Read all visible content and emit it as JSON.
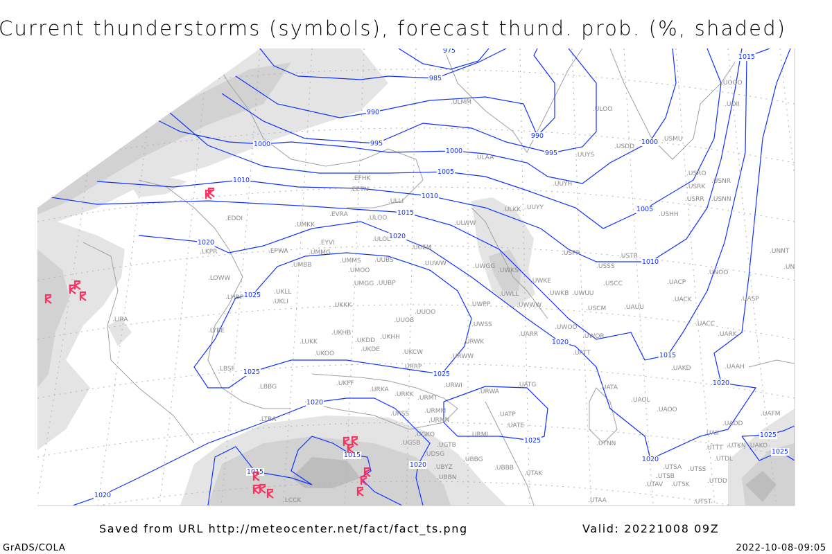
{
  "title": "Current thunderstorms (symbols), forecast thund. prob. (%, shaded)",
  "footer": {
    "saved_from": "Saved from URL http://meteocenter.net/fact/fact_ts.png",
    "valid": "Valid: 20221008 09Z",
    "software": "GrADS/COLA",
    "timestamp": "2022-10-08-09:05"
  },
  "colors": {
    "isobar": "#1030ff",
    "coastline": "#a0a0a0",
    "station_label": "#8a8a8a",
    "thunderstorm_symbol": "#ff3060",
    "shade_light": "#e4e4e4",
    "shade_mid": "#d2d2d2",
    "shade_dark": "#bdbdbd"
  },
  "legend": {
    "symbol": "thunderstorm-symbol-icon"
  },
  "isobars": [
    {
      "value": "975",
      "labels": [
        "975"
      ]
    },
    {
      "value": "985",
      "labels": [
        "985"
      ]
    },
    {
      "value": "990",
      "labels": [
        "990",
        "990"
      ]
    },
    {
      "value": "995",
      "labels": [
        "995",
        "995"
      ]
    },
    {
      "value": "1000",
      "labels": [
        "1000",
        "1000",
        "1000"
      ]
    },
    {
      "value": "1005",
      "labels": [
        "1005",
        "1005"
      ]
    },
    {
      "value": "1010",
      "labels": [
        "1010",
        "1010",
        "1010"
      ]
    },
    {
      "value": "1015",
      "labels": [
        "1015",
        "1015",
        "1015"
      ]
    },
    {
      "value": "1020",
      "labels": [
        "1020",
        "1020",
        "1020",
        "1020",
        "1020"
      ]
    },
    {
      "value": "1025",
      "labels": [
        "1025",
        "1025",
        "1025"
      ]
    },
    {
      "value": "1025",
      "labels": [
        "1025"
      ]
    },
    {
      "value": "1020",
      "labels": [
        "1020",
        "1020",
        "1020"
      ]
    },
    {
      "value": "1015",
      "labels": [
        "1015",
        "1015"
      ]
    },
    {
      "value": "1025",
      "labels": [
        "1025",
        "1025"
      ]
    }
  ],
  "stations": [
    "ULMM",
    "ULOO",
    "USDD",
    "USMU",
    "UUYS",
    "ULAA",
    "UUYH",
    "ULKK",
    "UUYY",
    "USHH",
    "USRO",
    "USRK",
    "USNR",
    "USRR",
    "USNN",
    "UOOO",
    "UOII",
    "EFHK",
    "EETN",
    "ULLI",
    "EVRA",
    "ULOO",
    "ULWW",
    "EDDI",
    "UMKK",
    "LKPR",
    "EPWA",
    "EYVI",
    "UMMG",
    "ULOL",
    "UUEM",
    "UMMS",
    "UMOO",
    "UUBS",
    "UUWW",
    "UMBB",
    "LOWW",
    "UMGG",
    "UUBP",
    "UKLL",
    "UWGG",
    "UWKS",
    "UWKE",
    "UWLL",
    "UWKB",
    "UWUU",
    "UWWW",
    "LHBP",
    "UKLI",
    "UKKK",
    "UWPP",
    "UUOO",
    "UUOB",
    "USSS",
    "USCC",
    "USPP",
    "USTR",
    "UNOO",
    "UNNT",
    "UNBB",
    "UACP",
    "UACK",
    "UASP",
    "USCM",
    "UAUU",
    "UACC",
    "UARK",
    "LIRA",
    "LYBE",
    "UKHH",
    "UKHB",
    "UKDD",
    "UWSS",
    "UWOO",
    "UWOR",
    "UARR",
    "URWK",
    "LUKK",
    "UKDE",
    "UKOO",
    "UKCW",
    "URWW",
    "UATT",
    "URRP",
    "LBSF",
    "UAKD",
    "UAAH",
    "UKFF",
    "URKA",
    "URKK",
    "URWI",
    "UATG",
    "URWA",
    "LBBG",
    "URMT",
    "UATA",
    "UAOL",
    "UAOO",
    "URMM",
    "UAFM",
    "URSS",
    "URMN",
    "UATP",
    "LTBA",
    "UATE",
    "UADD",
    "URML",
    "UGKO",
    "UGSB",
    "UAII",
    "UTNN",
    "UGTB",
    "UTTT",
    "UTKN",
    "UAKO",
    "UBBG",
    "UDSG",
    "UTDL",
    "UBYZ",
    "UBBB",
    "UTSA",
    "UTSS",
    "UTAK",
    "UTSB",
    "UBBN",
    "UTAV",
    "UTSK",
    "UTDD",
    "LCCK",
    "UTAA",
    "UTST"
  ]
}
